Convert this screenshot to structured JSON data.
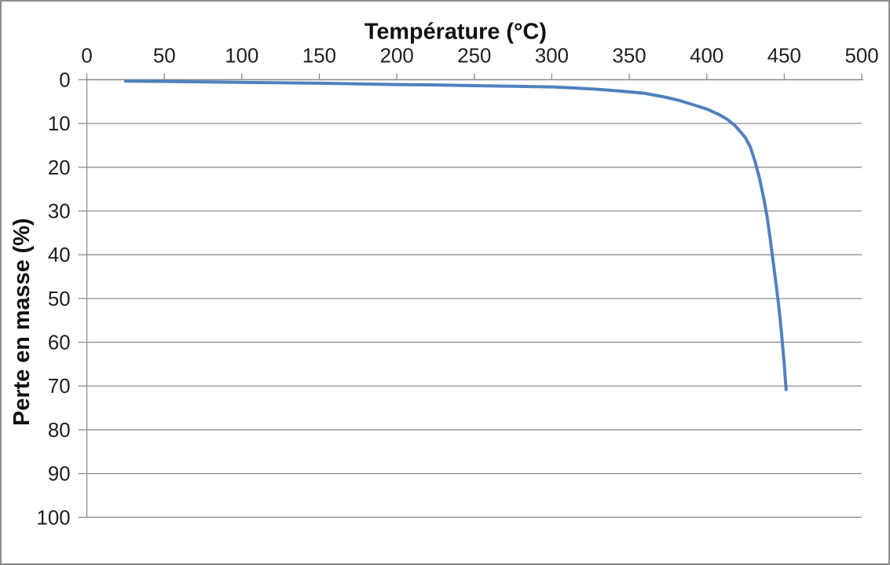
{
  "chart_data": {
    "type": "line",
    "title": "",
    "xlabel": "Température (°C)",
    "ylabel": "Perte en masse (%)",
    "xlim": [
      0,
      500
    ],
    "ylim": [
      0,
      100
    ],
    "y_axis_inverted": true,
    "x_ticks": [
      0,
      50,
      100,
      150,
      200,
      250,
      300,
      350,
      400,
      450,
      500
    ],
    "y_ticks": [
      0,
      10,
      20,
      30,
      40,
      50,
      60,
      70,
      80,
      90,
      100
    ],
    "grid": "horizontal-only",
    "legend": "none",
    "series": [
      {
        "name": "perte-en-masse",
        "color": "#4f81bd",
        "points": [
          [
            25,
            0.3
          ],
          [
            50,
            0.4
          ],
          [
            75,
            0.5
          ],
          [
            100,
            0.6
          ],
          [
            125,
            0.7
          ],
          [
            150,
            0.8
          ],
          [
            175,
            0.95
          ],
          [
            200,
            1.1
          ],
          [
            225,
            1.2
          ],
          [
            250,
            1.35
          ],
          [
            275,
            1.5
          ],
          [
            300,
            1.65
          ],
          [
            315,
            1.9
          ],
          [
            330,
            2.2
          ],
          [
            345,
            2.6
          ],
          [
            360,
            3.1
          ],
          [
            372,
            3.9
          ],
          [
            383,
            4.8
          ],
          [
            392,
            5.8
          ],
          [
            400,
            6.7
          ],
          [
            407,
            7.8
          ],
          [
            413,
            9.0
          ],
          [
            418,
            10.4
          ],
          [
            422,
            12.0
          ],
          [
            425,
            13.3
          ],
          [
            428,
            15.3
          ],
          [
            431,
            18.5
          ],
          [
            434,
            22.5
          ],
          [
            437,
            27.5
          ],
          [
            439,
            31.5
          ],
          [
            441,
            36.5
          ],
          [
            443,
            42.0
          ],
          [
            445,
            47.5
          ],
          [
            446.5,
            52.0
          ],
          [
            448,
            57.0
          ],
          [
            449,
            61.0
          ],
          [
            450,
            65.0
          ],
          [
            450.7,
            68.5
          ],
          [
            451.2,
            70.8
          ]
        ]
      }
    ],
    "colors": {
      "line": "#4f81bd",
      "gridline": "#8f8f8f",
      "axis": "#8c8c8c",
      "text": "#1f1f1f",
      "border": "#8c8c8c",
      "background": "#ffffff"
    }
  }
}
